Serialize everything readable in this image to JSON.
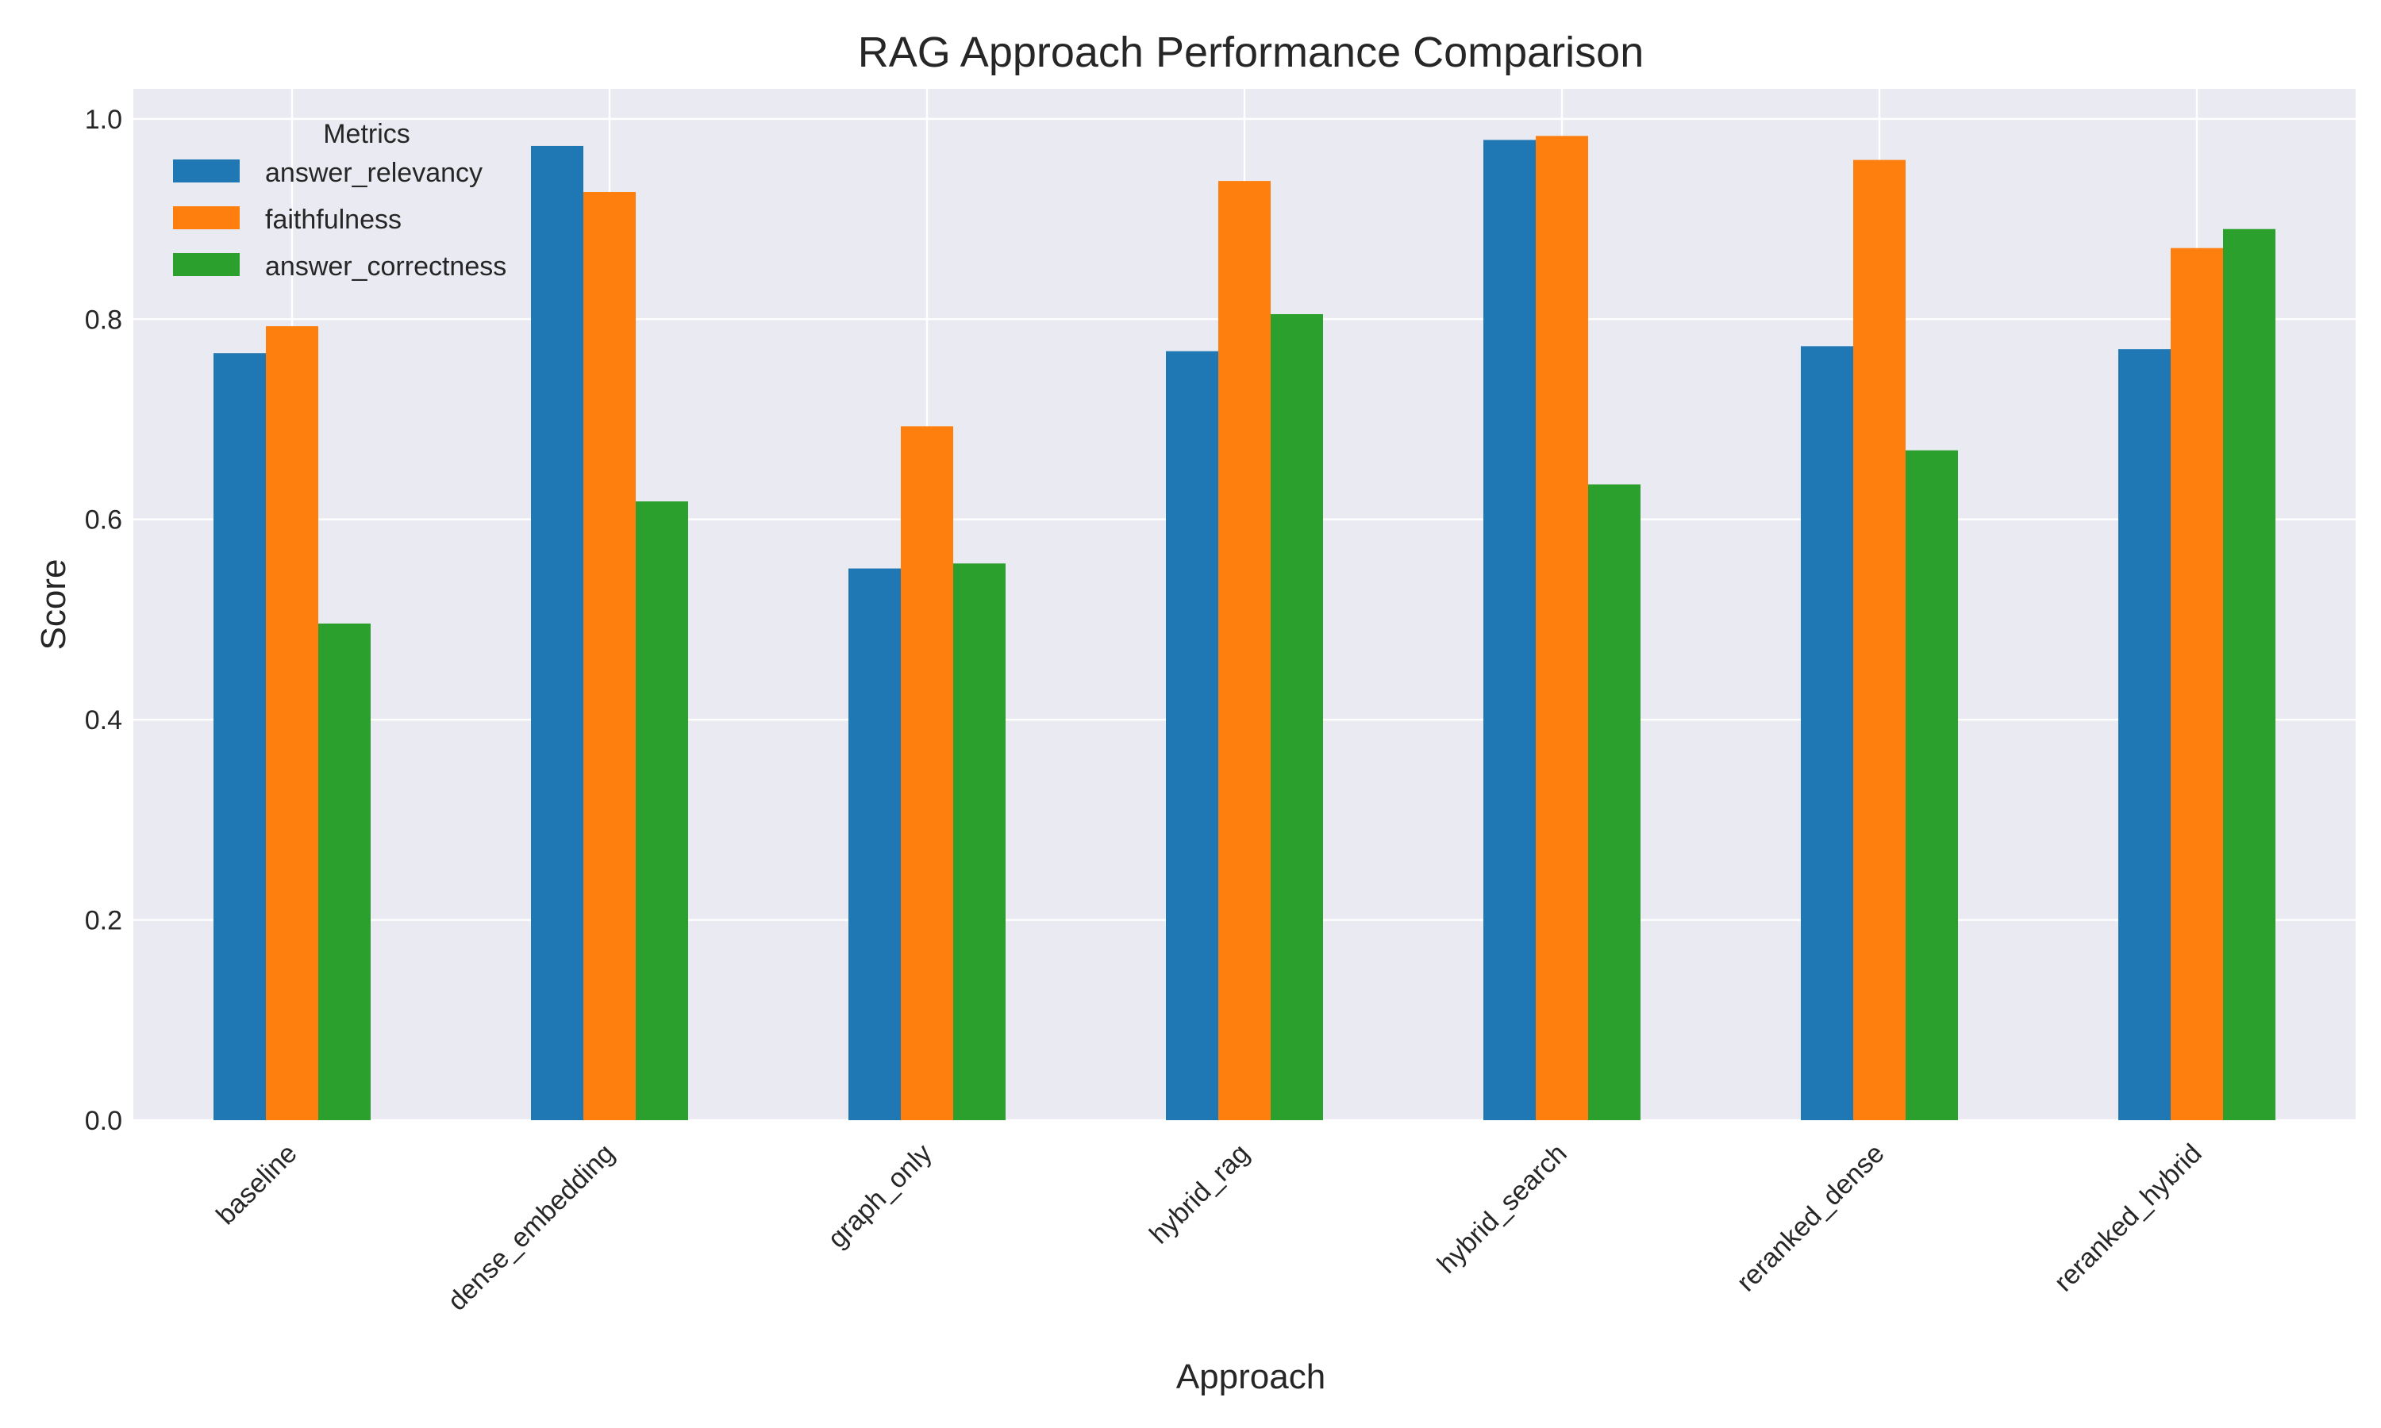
{
  "chart_data": {
    "type": "bar",
    "title": "RAG Approach Performance Comparison",
    "xlabel": "Approach",
    "ylabel": "Score",
    "ylim": [
      0,
      1.03
    ],
    "yticks": [
      0.0,
      0.2,
      0.4,
      0.6,
      0.8,
      1.0
    ],
    "ytick_labels": [
      "0.0",
      "0.2",
      "0.4",
      "0.6",
      "0.8",
      "1.0"
    ],
    "grid": true,
    "legend_title": "Metrics",
    "legend_position": "top-left",
    "categories": [
      "baseline",
      "dense_embedding",
      "graph_only",
      "hybrid_rag",
      "hybrid_search",
      "reranked_dense",
      "reranked_hybrid"
    ],
    "series": [
      {
        "name": "answer_relevancy",
        "color": "#1f77b4",
        "values": [
          0.766,
          0.973,
          0.551,
          0.768,
          0.979,
          0.773,
          0.77
        ]
      },
      {
        "name": "faithfulness",
        "color": "#ff7f0e",
        "values": [
          0.793,
          0.927,
          0.693,
          0.938,
          0.983,
          0.959,
          0.871
        ]
      },
      {
        "name": "answer_correctness",
        "color": "#2ca02c",
        "values": [
          0.496,
          0.618,
          0.556,
          0.805,
          0.635,
          0.669,
          0.89
        ]
      }
    ]
  }
}
